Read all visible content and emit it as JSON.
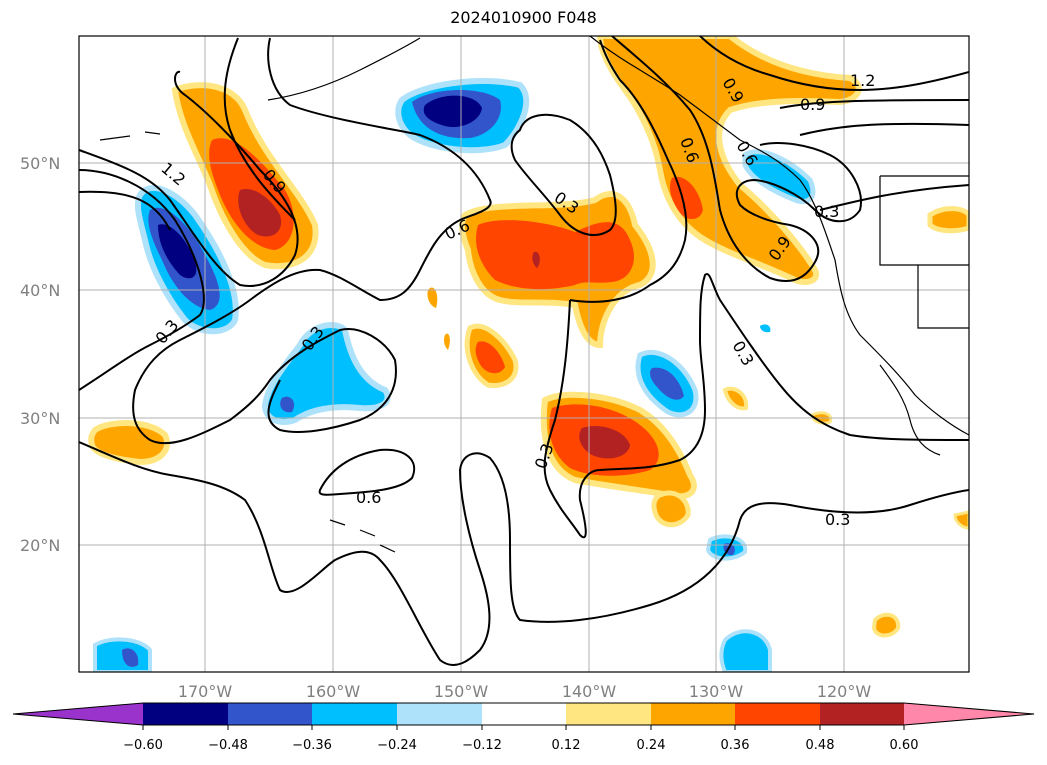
{
  "title": "2024010900 F048",
  "map": {
    "lat_labels": [
      "50°N",
      "40°N",
      "30°N",
      "20°N"
    ],
    "lon_labels": [
      "170°W",
      "160°W",
      "150°W",
      "140°W",
      "130°W",
      "120°W"
    ],
    "contour_labels": [
      "1.2",
      "0.9",
      "0.6",
      "0.3",
      "1.2",
      "0.9",
      "0.9",
      "0.6",
      "0.3",
      "0.6",
      "0.3",
      "0.3",
      "0.3",
      "0.3",
      "0.9",
      "0.6",
      "0.3"
    ]
  },
  "colorbar": {
    "labels": [
      "−0.60",
      "−0.48",
      "−0.36",
      "−0.24",
      "−0.12",
      "0.12",
      "0.24",
      "0.36",
      "0.48",
      "0.60"
    ],
    "colors": [
      "#9933cc",
      "#000080",
      "#3355cc",
      "#00bfff",
      "#aee1fa",
      "#ffffff",
      "#ffe680",
      "#ffa500",
      "#ff4500",
      "#b22222",
      "#ff88aa"
    ]
  }
}
